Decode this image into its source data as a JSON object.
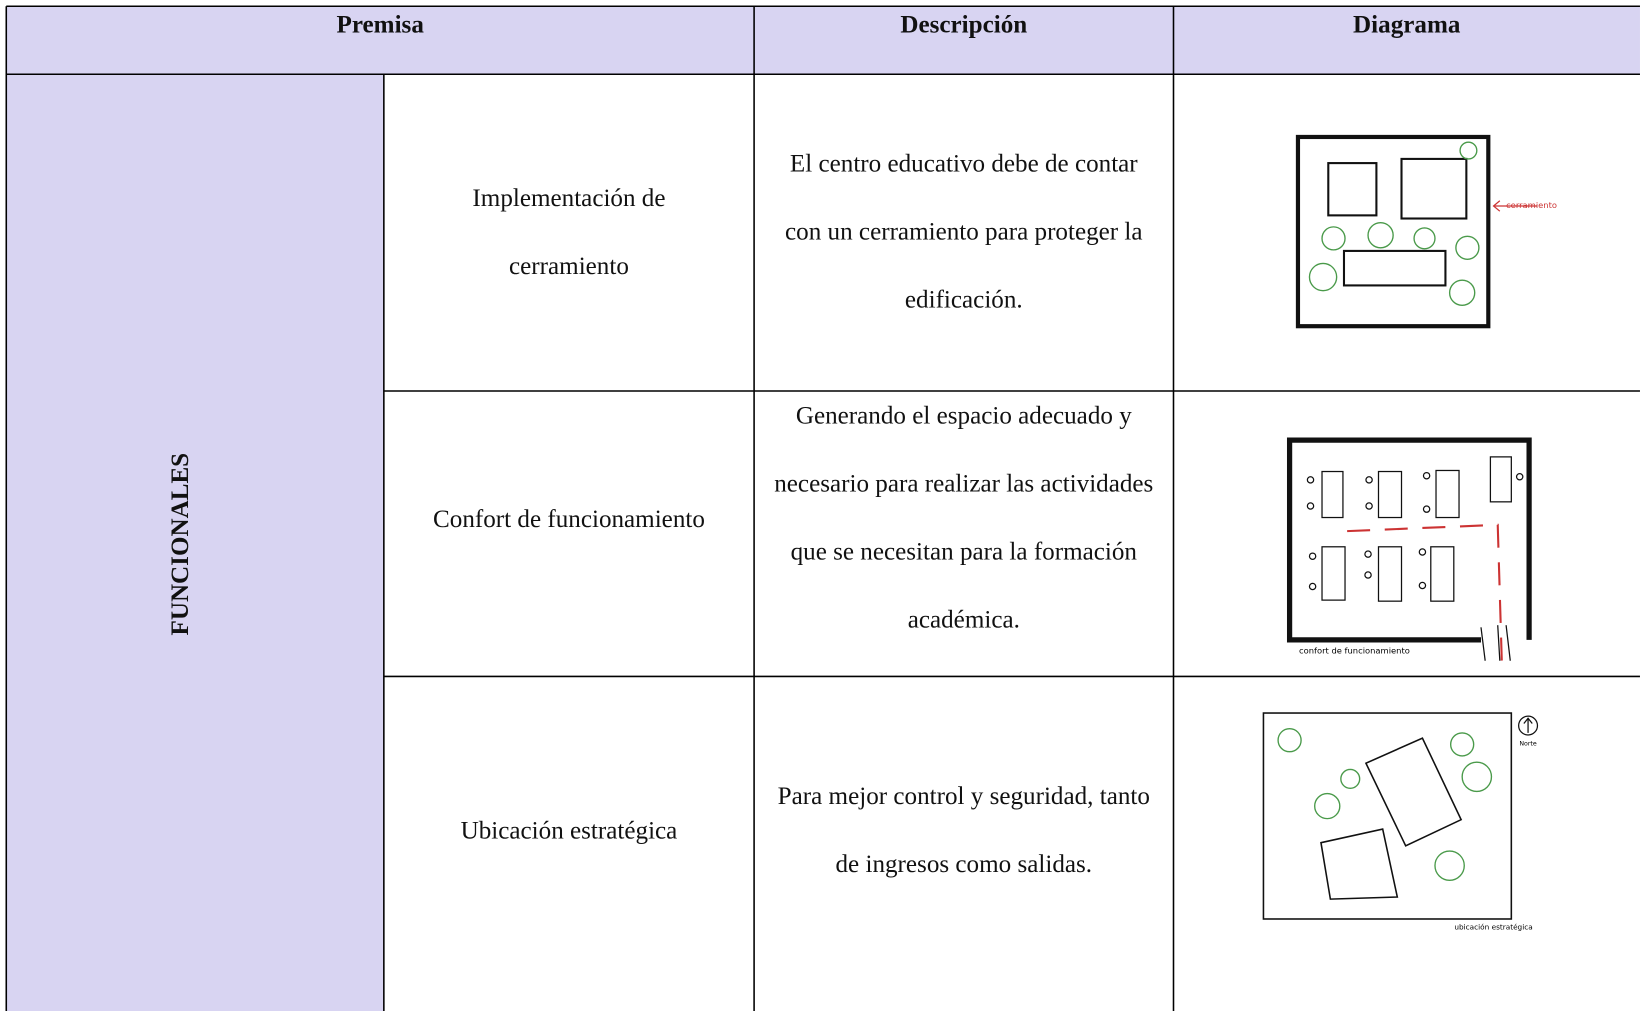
{
  "table": {
    "header": [
      "Premisa",
      "Descripción",
      "Diagrama"
    ],
    "group": "FUNCIONALES",
    "rows": [
      {
        "premise": "Implementación de cerramiento",
        "description": "El centro educativo debe de contar con un cerramiento para proteger la edificación.",
        "diagram_label": "cerramiento"
      },
      {
        "premise": "Confort de funcionamiento",
        "description": "Generando el espacio adecuado y necesario para realizar las actividades que se necesitan para la formación académica.",
        "diagram_label": "confort de funcionamiento"
      },
      {
        "premise": "Ubicación estratégica",
        "description": "Para mejor control y seguridad, tanto de ingresos como salidas.",
        "diagram_label": "ubicación estratégica",
        "north_label": "Norte"
      }
    ]
  }
}
